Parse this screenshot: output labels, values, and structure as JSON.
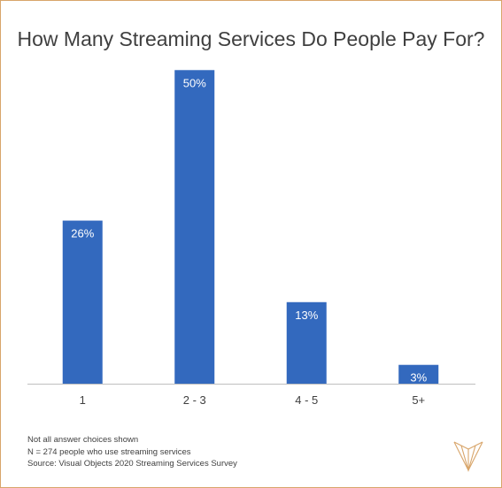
{
  "chart_data": {
    "type": "bar",
    "title": "How Many Streaming Services Do People Pay For?",
    "categories": [
      "1",
      "2 - 3",
      "4 - 5",
      "5+"
    ],
    "values": [
      26,
      50,
      13,
      3
    ],
    "value_labels": [
      "26%",
      "50%",
      "13%",
      "3%"
    ],
    "unit": "%",
    "ylim": [
      0,
      53
    ],
    "grid": false,
    "bar_color": "#3369be",
    "label_color": "#ffffff"
  },
  "notes": [
    "Not all answer choices shown",
    "N = 274 people who use streaming services",
    "Source: Visual Objects 2020 Streaming Services Survey"
  ],
  "colors": {
    "border": "#d8a56a",
    "axis": "#bfbfbf",
    "text": "#404040",
    "logo": "#d8a56a"
  }
}
